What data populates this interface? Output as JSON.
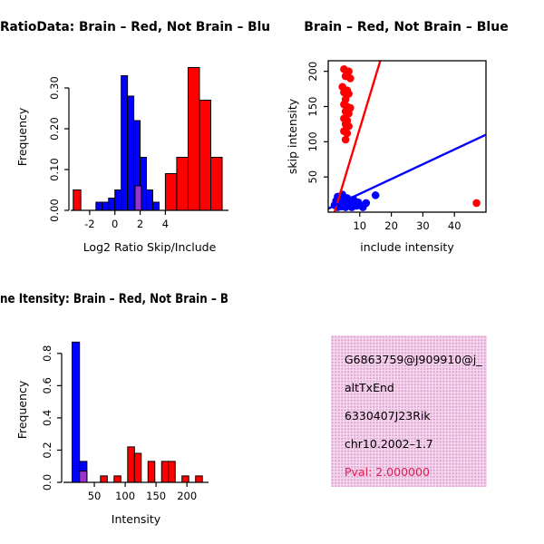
{
  "window": {
    "background": "#ffffff"
  },
  "colors": {
    "red": "#FF0000",
    "blue": "#0000FF",
    "purple": "#9933CC",
    "axis": "#000000",
    "pval_red": "#DD2255"
  },
  "chart_data": [
    {
      "id": "log2ratio_hist",
      "type": "histogram",
      "title": "RatioData: Brain – Red, Not Brain – Blu",
      "xlabel": "Log2 Ratio Skip/Include",
      "ylabel": "Frequency",
      "xlim": [
        -3.5,
        9
      ],
      "ylim": [
        0,
        0.36
      ],
      "xticks": [
        {
          "v": -2,
          "label": "-2"
        },
        {
          "v": 0,
          "label": "0"
        },
        {
          "v": 2,
          "label": "2"
        },
        {
          "v": 4,
          "label": "4"
        }
      ],
      "yticks": [
        {
          "v": 0,
          "label": "0.00"
        },
        {
          "v": 0.1,
          "label": "0.10"
        },
        {
          "v": 0.2,
          "label": "0.20"
        },
        {
          "v": 0.3,
          "label": "0.30"
        }
      ],
      "series": [
        {
          "name": "brain-red-hist",
          "color": "red",
          "bins": [
            [
              -3.3,
              -2.7,
              0.05
            ],
            [
              4.0,
              4.9,
              0.09
            ],
            [
              4.9,
              5.8,
              0.13
            ],
            [
              5.8,
              6.7,
              0.35
            ],
            [
              6.7,
              7.6,
              0.27
            ],
            [
              7.6,
              8.5,
              0.13
            ]
          ]
        },
        {
          "name": "notbrain-blue-hist",
          "color": "blue",
          "bins": [
            [
              -1.5,
              -1.0,
              0.02
            ],
            [
              -1.0,
              -0.5,
              0.02
            ],
            [
              -0.5,
              0.0,
              0.03
            ],
            [
              0.0,
              0.5,
              0.05
            ],
            [
              0.5,
              1.0,
              0.33
            ],
            [
              1.0,
              1.5,
              0.28
            ],
            [
              1.5,
              2.0,
              0.22
            ],
            [
              2.0,
              2.5,
              0.13
            ],
            [
              2.5,
              3.0,
              0.05
            ],
            [
              3.0,
              3.5,
              0.02
            ]
          ]
        },
        {
          "name": "overlap-hist",
          "color": "purple",
          "bins": [
            [
              1.6,
              2.1,
              0.06
            ]
          ]
        }
      ]
    },
    {
      "id": "intensity_scatter",
      "type": "scatter",
      "title": "Brain – Red, Not Brain – Blue",
      "xlabel": "include intensity",
      "ylabel": "skip intensity",
      "xlim": [
        0,
        50
      ],
      "ylim": [
        0,
        215
      ],
      "xticks": [
        {
          "v": 10,
          "label": "10"
        },
        {
          "v": 20,
          "label": "20"
        },
        {
          "v": 30,
          "label": "30"
        },
        {
          "v": 40,
          "label": "40"
        }
      ],
      "yticks": [
        {
          "v": 50,
          "label": "50"
        },
        {
          "v": 100,
          "label": "100"
        },
        {
          "v": 150,
          "label": "150"
        },
        {
          "v": 200,
          "label": "200"
        }
      ],
      "series": [
        {
          "name": "brain-red-point",
          "color": "red",
          "points": [
            [
              5,
              203
            ],
            [
              6.5,
              200
            ],
            [
              5.5,
              193
            ],
            [
              7,
              190
            ],
            [
              4.5,
              178
            ],
            [
              6,
              173
            ],
            [
              5,
              170
            ],
            [
              6.5,
              168
            ],
            [
              5.5,
              160
            ],
            [
              5,
              153
            ],
            [
              6,
              150
            ],
            [
              7,
              148
            ],
            [
              5.5,
              143
            ],
            [
              6.5,
              140
            ],
            [
              5,
              133
            ],
            [
              6,
              130
            ],
            [
              5.5,
              125
            ],
            [
              6.5,
              122
            ],
            [
              5,
              115
            ],
            [
              6,
              112
            ],
            [
              5.5,
              103
            ],
            [
              47,
              13
            ]
          ]
        },
        {
          "name": "notbrain-blue-point",
          "color": "blue",
          "points": [
            [
              2,
              10
            ],
            [
              2.5,
              16
            ],
            [
              3,
              7
            ],
            [
              3,
              22
            ],
            [
              3.5,
              12
            ],
            [
              4,
              8
            ],
            [
              4,
              18
            ],
            [
              4.5,
              25
            ],
            [
              5,
              10
            ],
            [
              5,
              15
            ],
            [
              5.5,
              7
            ],
            [
              6,
              12
            ],
            [
              6,
              20
            ],
            [
              6.5,
              9
            ],
            [
              7,
              15
            ],
            [
              7.5,
              7
            ],
            [
              8,
              11
            ],
            [
              8,
              18
            ],
            [
              9,
              9
            ],
            [
              9.5,
              14
            ],
            [
              10,
              10
            ],
            [
              11,
              7
            ],
            [
              12,
              13
            ],
            [
              15,
              24
            ]
          ]
        }
      ],
      "lines": [
        {
          "name": "brain-red-fit-line",
          "color": "red",
          "from": [
            2,
            0
          ],
          "to": [
            16.5,
            215
          ]
        },
        {
          "name": "notbrain-blue-fit-line",
          "color": "blue",
          "from": [
            0,
            5
          ],
          "to": [
            50,
            110
          ]
        }
      ]
    },
    {
      "id": "intensity_hist",
      "type": "histogram",
      "title": "ne Itensity: Brain – Red, Not Brain – B",
      "xlabel": "Intensity",
      "ylabel": "Frequency",
      "xlim": [
        0,
        235
      ],
      "ylim": [
        0,
        0.9
      ],
      "xticks": [
        {
          "v": 50,
          "label": "50"
        },
        {
          "v": 100,
          "label": "100"
        },
        {
          "v": 150,
          "label": "150"
        },
        {
          "v": 200,
          "label": "200"
        }
      ],
      "yticks": [
        {
          "v": 0.0,
          "label": "0.0"
        },
        {
          "v": 0.2,
          "label": "0.2"
        },
        {
          "v": 0.4,
          "label": "0.4"
        },
        {
          "v": 0.6,
          "label": "0.6"
        },
        {
          "v": 0.8,
          "label": "0.8"
        }
      ],
      "series": [
        {
          "name": "brain-red-hist",
          "color": "red",
          "bins": [
            [
              60,
              71,
              0.04
            ],
            [
              82,
              93,
              0.04
            ],
            [
              104,
              115,
              0.22
            ],
            [
              115,
              126,
              0.18
            ],
            [
              137,
              148,
              0.13
            ],
            [
              159,
              170,
              0.13
            ],
            [
              170,
              181,
              0.13
            ],
            [
              192,
              203,
              0.04
            ],
            [
              214,
              225,
              0.04
            ]
          ]
        },
        {
          "name": "notbrain-blue-hist",
          "color": "blue",
          "bins": [
            [
              14,
              26,
              0.87
            ],
            [
              26,
              38,
              0.13
            ]
          ]
        },
        {
          "name": "overlap-hist",
          "color": "purple",
          "bins": [
            [
              26,
              38,
              0.07
            ]
          ]
        }
      ]
    }
  ],
  "info_box": {
    "bg": "#F6D9EF",
    "dot": "#DFA8D2",
    "lines": [
      {
        "text": "G6863759@J909910@j_",
        "color": "#000000"
      },
      {
        "text": "altTxEnd",
        "color": "#000000"
      },
      {
        "text": "6330407J23Rik",
        "color": "#000000"
      },
      {
        "text": "chr10.2002–1.7",
        "color": "#000000"
      },
      {
        "text": "Pval: 2.000000",
        "color": "#DD2255"
      }
    ]
  }
}
